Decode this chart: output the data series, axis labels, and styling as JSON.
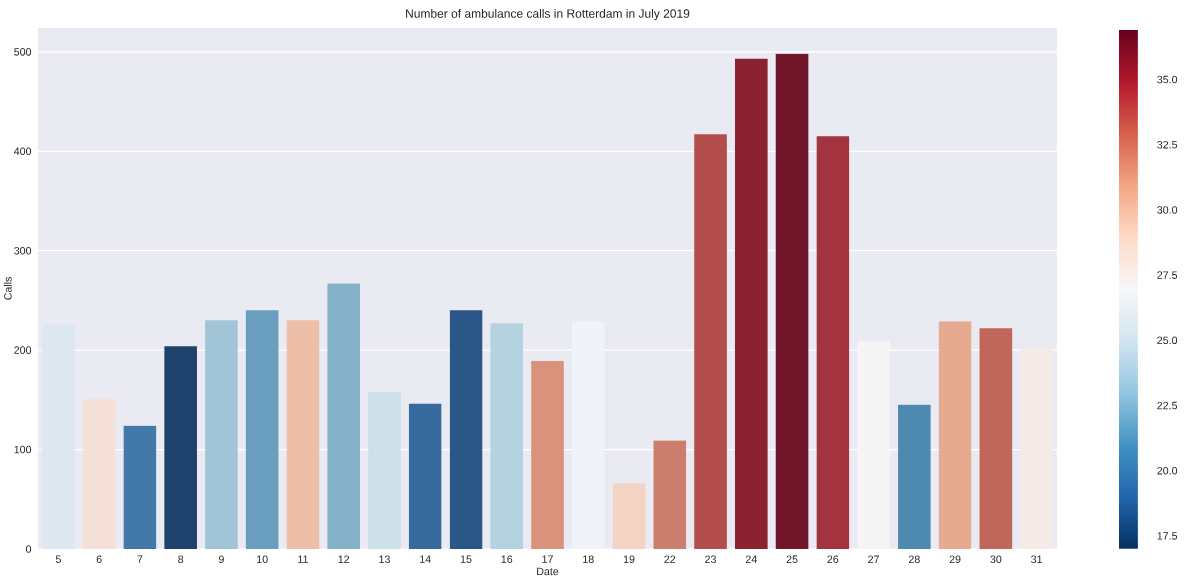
{
  "chart_data": {
    "type": "bar",
    "title": "Number of ambulance calls in Rotterdam in July 2019",
    "xlabel": "Date",
    "ylabel": "Calls",
    "categories": [
      "5",
      "6",
      "7",
      "8",
      "9",
      "10",
      "11",
      "12",
      "13",
      "14",
      "15",
      "16",
      "17",
      "18",
      "19",
      "22",
      "23",
      "24",
      "25",
      "26",
      "27",
      "28",
      "29",
      "30",
      "31"
    ],
    "values": [
      226,
      151,
      124,
      204,
      230,
      240,
      230,
      267,
      158,
      146,
      240,
      227,
      189,
      229,
      66,
      109,
      417,
      493,
      498,
      415,
      209,
      145,
      229,
      222,
      201
    ],
    "colors": [
      "#dde8f0",
      "#f5e1d7",
      "#4379a8",
      "#1f426d",
      "#a1c4d6",
      "#6a9ebf",
      "#edbea8",
      "#85b1c9",
      "#cddfe8",
      "#36699c",
      "#2a5688",
      "#b5d2e0",
      "#d9937c",
      "#f0f3f7",
      "#f3d3c3",
      "#cc7e6d",
      "#b44e4c",
      "#8b2131",
      "#72172b",
      "#a3333f",
      "#f5f5f5",
      "#4e8ab0",
      "#e6aa91",
      "#c0665b",
      "#f4ebe6"
    ],
    "ylim": [
      0,
      524
    ],
    "yticks": [
      0,
      100,
      200,
      300,
      400,
      500
    ],
    "grid": "y",
    "clim": [
      17.0,
      36.9
    ],
    "cticks": [
      {
        "value": 17.5,
        "label": "17.5"
      },
      {
        "value": 20,
        "label": "20.0"
      },
      {
        "value": 22.5,
        "label": "22.5"
      },
      {
        "value": 25,
        "label": "25.0"
      },
      {
        "value": 27.5,
        "label": "27.5"
      },
      {
        "value": 30,
        "label": "30.0"
      },
      {
        "value": 32.5,
        "label": "32.5"
      },
      {
        "value": 35,
        "label": "35.0"
      }
    ]
  }
}
